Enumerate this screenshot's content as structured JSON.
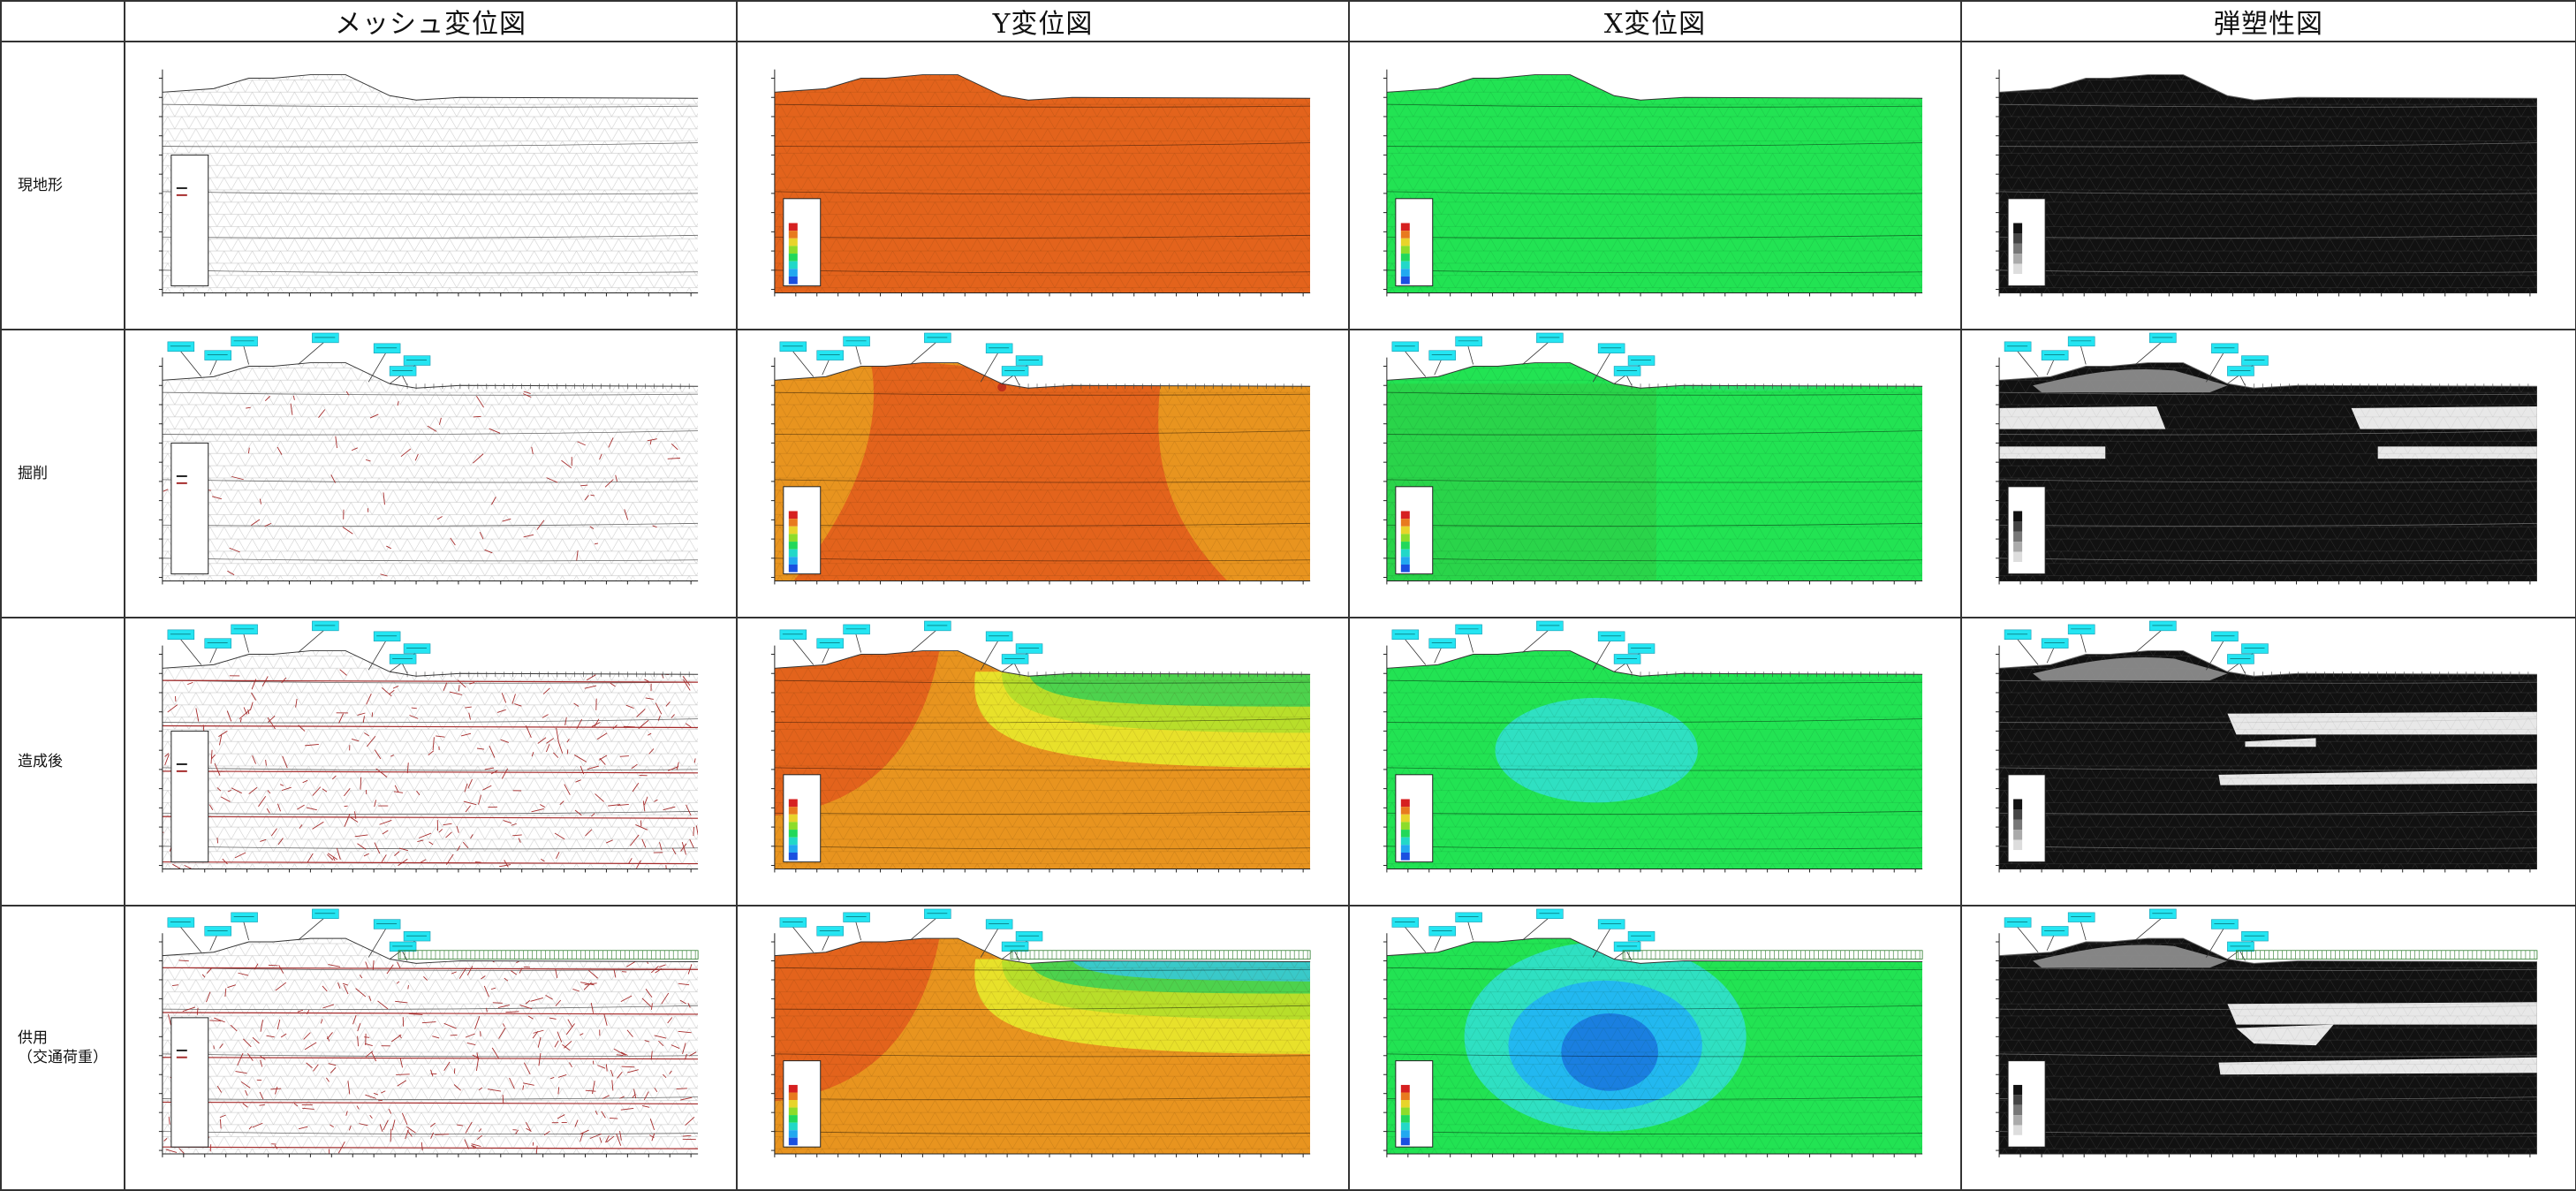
{
  "table": {
    "columns": [
      "メッシュ変位図",
      "Y変位図",
      "X変位図",
      "弾塑性図"
    ],
    "rows": [
      "現地形",
      "掘削",
      "造成後",
      "供用\n（交通荷重）"
    ]
  },
  "colors": {
    "mesh_bg": "#ffffff",
    "mesh_line": "#b8b8b8",
    "mesh_disp": "#a52a2a",
    "ydisp_base": "#e3631c",
    "ydisp_orange2": "#e8941f",
    "ydisp_yellow": "#e8e12a",
    "ydisp_green": "#4dd24d",
    "ydisp_cyan": "#39c9c9",
    "xdisp_base": "#22e353",
    "xdisp_green2": "#2ede6a",
    "xdisp_cyan": "#2fe0c2",
    "xdisp_lightblue": "#22b8f0",
    "xdisp_blue": "#1a7fe0",
    "plastic_black": "#111111",
    "plastic_white": "#e8e8e8",
    "label_box": "#24e5f2"
  },
  "icons": {
    "legend": "legend-box-icon",
    "callout": "callout-label-icon"
  }
}
